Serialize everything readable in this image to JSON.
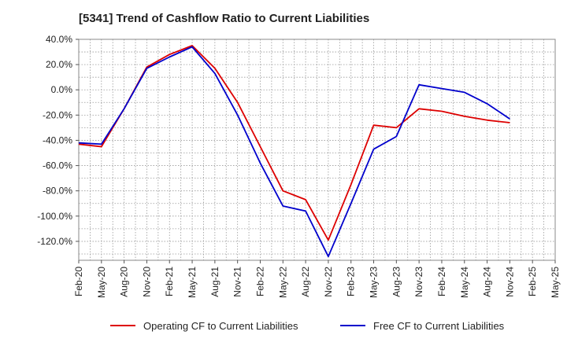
{
  "chart_data": {
    "type": "line",
    "title": "[5341]  Trend of Cashflow Ratio to Current Liabilities",
    "xlabel": "",
    "ylabel": "",
    "x": [
      "Feb-20",
      "May-20",
      "Aug-20",
      "Nov-20",
      "Feb-21",
      "May-21",
      "Aug-21",
      "Nov-21",
      "Feb-22",
      "May-22",
      "Aug-22",
      "Nov-22",
      "Feb-23",
      "May-23",
      "Aug-23",
      "Nov-23",
      "Feb-24",
      "May-24",
      "Aug-24",
      "Nov-24",
      "Feb-25",
      "May-25"
    ],
    "y_ticks": [
      "40.0%",
      "20.0%",
      "0.0%",
      "-20.0%",
      "-40.0%",
      "-60.0%",
      "-80.0%",
      "-100.0%",
      "-120.0%"
    ],
    "y_tick_values": [
      40,
      20,
      0,
      -20,
      -40,
      -60,
      -80,
      -100,
      -120
    ],
    "ylim": [
      -135,
      40
    ],
    "grid": true,
    "legend_position": "bottom",
    "series": [
      {
        "name": "Operating CF to Current Liabilities",
        "color": "#dd0000",
        "values": [
          -43,
          -45,
          -15,
          18,
          28,
          35,
          17,
          -10,
          -45,
          -80,
          -87,
          -119,
          -75,
          -28,
          -30,
          -15,
          -17,
          -21,
          -24,
          -26,
          null,
          null
        ]
      },
      {
        "name": "Free CF to Current Liabilities",
        "color": "#0000cc",
        "values": [
          -42,
          -43,
          -15,
          17,
          26,
          34,
          13,
          -20,
          -58,
          -92,
          -96,
          -132,
          -90,
          -47,
          -37,
          4,
          1,
          -2,
          -11,
          -23,
          null,
          null
        ]
      }
    ]
  }
}
